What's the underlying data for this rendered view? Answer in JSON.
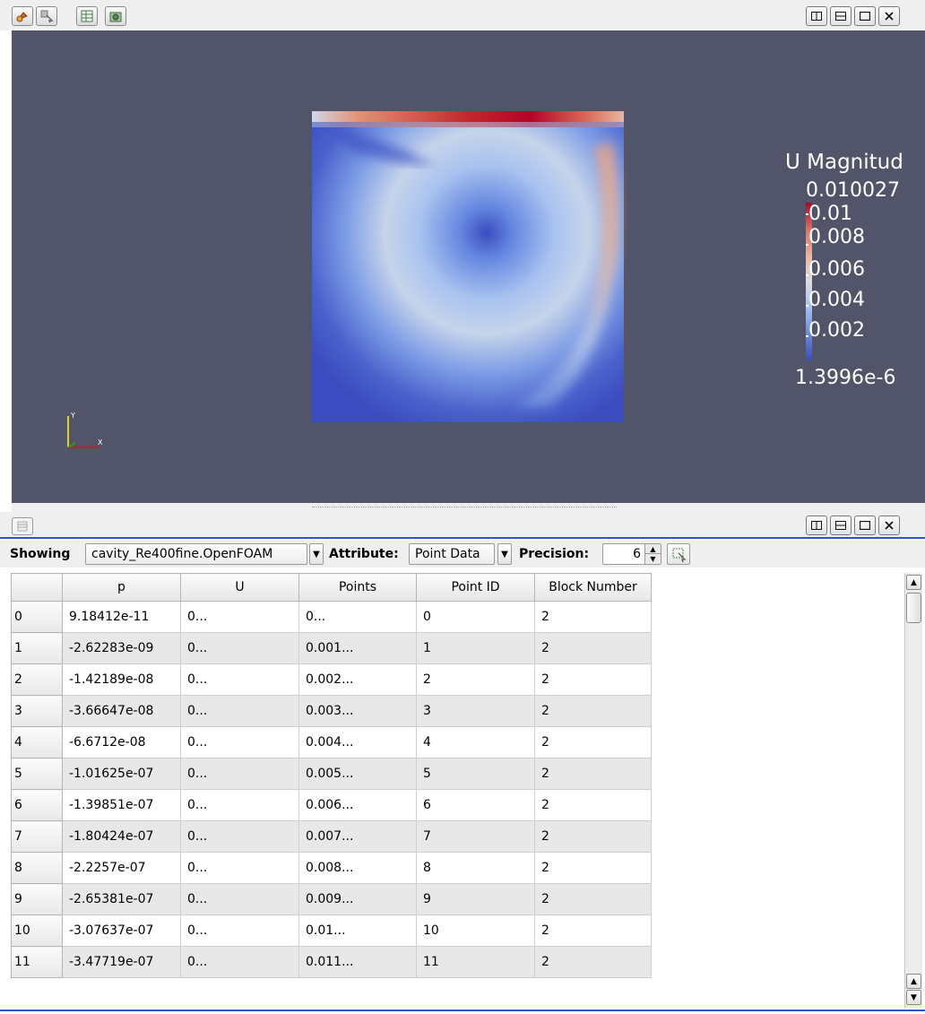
{
  "toolbar": {
    "left_icons": [
      "reset-camera-icon",
      "interact-icon",
      "spreadsheet-icon",
      "camera-capture-icon"
    ],
    "window_controls": [
      "split-horizontal-icon",
      "split-vertical-icon",
      "maximize-icon",
      "close-icon"
    ]
  },
  "legend": {
    "title": "U Magnitud",
    "max_label": "0.010027",
    "labels": [
      "0.01",
      "0.008",
      "0.006",
      "0.004",
      "0.002"
    ],
    "min_label": "1.3996e-6"
  },
  "axes": {
    "y_label": "Y",
    "x_label": "X"
  },
  "spreadsheet": {
    "showing_label": "Showing",
    "source": "cavity_Re400fine.OpenFOAM",
    "attribute_label": "Attribute:",
    "attribute": "Point Data",
    "precision_label": "Precision:",
    "precision": "6",
    "columns": [
      "p",
      "U",
      "Points",
      "Point ID",
      "Block Number"
    ],
    "rows": [
      [
        "0",
        "9.18412e-11",
        "0...",
        "0...",
        "0",
        "2"
      ],
      [
        "1",
        "-2.62283e-09",
        "0...",
        "0.001...",
        "1",
        "2"
      ],
      [
        "2",
        "-1.42189e-08",
        "0...",
        "0.002...",
        "2",
        "2"
      ],
      [
        "3",
        "-3.66647e-08",
        "0...",
        "0.003...",
        "3",
        "2"
      ],
      [
        "4",
        "-6.6712e-08",
        "0...",
        "0.004...",
        "4",
        "2"
      ],
      [
        "5",
        "-1.01625e-07",
        "0...",
        "0.005...",
        "5",
        "2"
      ],
      [
        "6",
        "-1.39851e-07",
        "0...",
        "0.006...",
        "6",
        "2"
      ],
      [
        "7",
        "-1.80424e-07",
        "0...",
        "0.007...",
        "7",
        "2"
      ],
      [
        "8",
        "-2.2257e-07",
        "0...",
        "0.008...",
        "8",
        "2"
      ],
      [
        "9",
        "-2.65381e-07",
        "0...",
        "0.009...",
        "9",
        "2"
      ],
      [
        "10",
        "-3.07637e-07",
        "0...",
        "0.01...",
        "10",
        "2"
      ],
      [
        "11",
        "-3.47719e-07",
        "0...",
        "0.011...",
        "11",
        "2"
      ]
    ]
  },
  "colors": {
    "view_background": "#525569",
    "accent_border": "#2d55c8",
    "cool": "#3b4cc0",
    "warm": "#b40426"
  }
}
